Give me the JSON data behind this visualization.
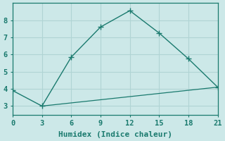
{
  "xlabel": "Humidex (Indice chaleur)",
  "background_color": "#cce8e8",
  "line_color": "#1a7a6e",
  "line1_x": [
    0,
    3,
    6,
    9,
    12,
    15,
    18,
    21
  ],
  "line1_y": [
    3.9,
    3.0,
    5.85,
    7.6,
    8.55,
    7.25,
    5.75,
    4.1
  ],
  "line2_x": [
    3,
    21
  ],
  "line2_y": [
    3.0,
    4.1
  ],
  "xlim": [
    0,
    21
  ],
  "ylim": [
    2.5,
    9.0
  ],
  "xticks": [
    0,
    3,
    6,
    9,
    12,
    15,
    18,
    21
  ],
  "yticks": [
    3,
    4,
    5,
    6,
    7,
    8
  ],
  "grid_color": "#b0d4d4",
  "marker_size": 3.5,
  "tick_fontsize": 7.5,
  "xlabel_fontsize": 8
}
